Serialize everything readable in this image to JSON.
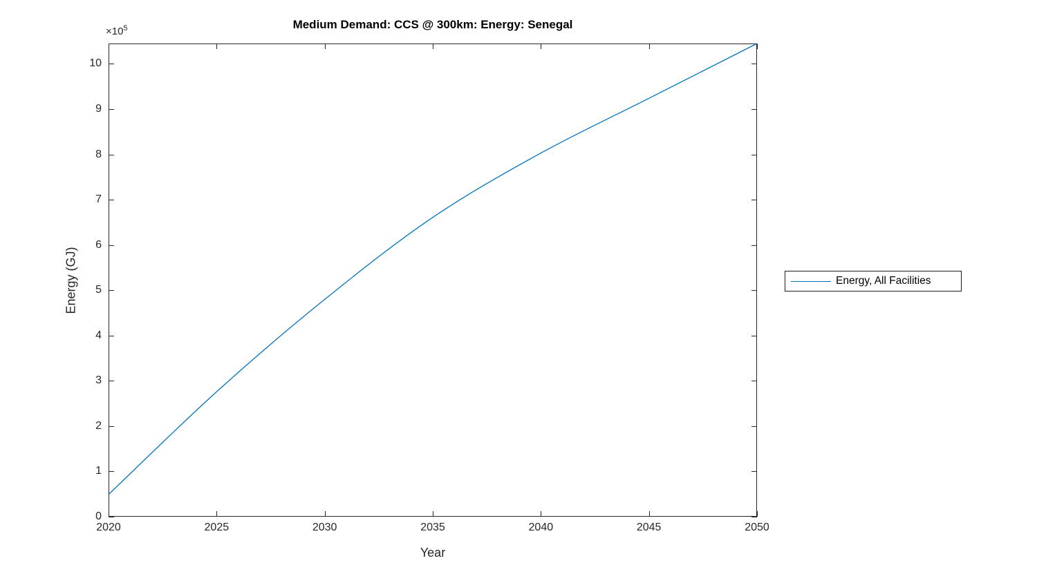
{
  "chart_data": {
    "type": "line",
    "title": "Medium Demand: CCS @ 300km: Energy: Senegal",
    "xlabel": "Year",
    "ylabel": "Energy (GJ)",
    "y_multiplier": {
      "base": "×10",
      "exponent": "5"
    },
    "xlim": [
      2020,
      2050
    ],
    "ylim_GJ": [
      0,
      1045000
    ],
    "ylim_display_e5": [
      0,
      10.45
    ],
    "x_ticks": [
      "2020",
      "2025",
      "2030",
      "2035",
      "2040",
      "2045",
      "2050"
    ],
    "y_ticks": [
      "0",
      "1",
      "2",
      "3",
      "4",
      "5",
      "6",
      "7",
      "8",
      "9",
      "10"
    ],
    "grid": false,
    "box": true,
    "tick_direction": "in",
    "legend": {
      "position": "eastoutside",
      "entries": [
        {
          "label": "Energy, All Facilities",
          "color": "#0072BD"
        }
      ]
    },
    "series": [
      {
        "name": "Energy, All Facilities",
        "color": "#0072BD",
        "x": [
          2020,
          2025,
          2030,
          2035,
          2040,
          2045,
          2050
        ],
        "y_GJ": [
          49000,
          276000,
          480000,
          661000,
          803000,
          924000,
          1045000
        ]
      }
    ]
  },
  "colors": {
    "line": "#0072BD",
    "axis": "#262626",
    "tick_text": "#262626",
    "title_text": "#000000",
    "background": "#ffffff"
  }
}
